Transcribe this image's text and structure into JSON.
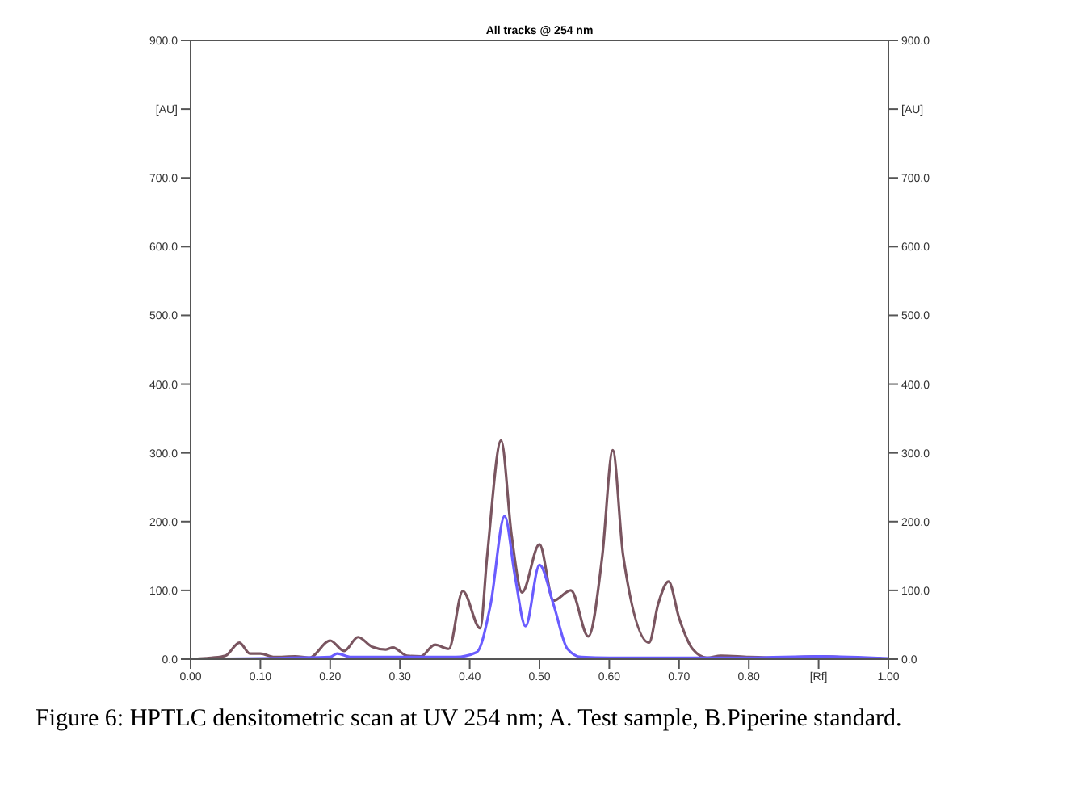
{
  "chart_data": {
    "type": "line",
    "title": "All tracks @ 254 nm",
    "annotations": [
      "Figure 6: HPTLC densitometric scan at UV 254 nm; A. Test sample, B.Piperine standard."
    ],
    "xlim": [
      0,
      1
    ],
    "xticks": [
      {
        "value": 0,
        "label": "0.00"
      },
      {
        "value": 0.1,
        "label": "0.10"
      },
      {
        "value": 0.2,
        "label": "0.20"
      },
      {
        "value": 0.3,
        "label": "0.30"
      },
      {
        "value": 0.4,
        "label": "0.40"
      },
      {
        "value": 0.5,
        "label": "0.50"
      },
      {
        "value": 0.6,
        "label": "0.60"
      },
      {
        "value": 0.7,
        "label": "0.70"
      },
      {
        "value": 0.8,
        "label": "0.80"
      },
      {
        "value": 0.9,
        "label": "[Rf]"
      },
      {
        "value": 1,
        "label": "1.00"
      }
    ],
    "ylim": [
      0,
      900
    ],
    "yticks": [
      {
        "value": 0,
        "label": "0.0"
      },
      {
        "value": 100,
        "label": "100.0"
      },
      {
        "value": 200,
        "label": "200.0"
      },
      {
        "value": 300,
        "label": "300.0"
      },
      {
        "value": 400,
        "label": "400.0"
      },
      {
        "value": 500,
        "label": "500.0"
      },
      {
        "value": 600,
        "label": "600.0"
      },
      {
        "value": 700,
        "label": "700.0"
      },
      {
        "value": 800,
        "label": "[AU]"
      },
      {
        "value": 900,
        "label": "900.0"
      }
    ],
    "y2lim": [
      0,
      900
    ],
    "y2ticks": [
      {
        "value": 0,
        "label": "0.0"
      },
      {
        "value": 100,
        "label": "100.0"
      },
      {
        "value": 200,
        "label": "200.0"
      },
      {
        "value": 300,
        "label": "300.0"
      },
      {
        "value": 400,
        "label": "400.0"
      },
      {
        "value": 500,
        "label": "500.0"
      },
      {
        "value": 600,
        "label": "600.0"
      },
      {
        "value": 700,
        "label": "700.0"
      },
      {
        "value": 800,
        "label": "[AU]"
      },
      {
        "value": 900,
        "label": "900.0"
      }
    ],
    "marker": "none",
    "line_style": "solid",
    "series": [
      {
        "color": "#7a5560",
        "x": [
          0,
          0.03,
          0.05,
          0.07,
          0.085,
          0.1,
          0.12,
          0.15,
          0.17,
          0.2,
          0.22,
          0.24,
          0.26,
          0.28,
          0.29,
          0.31,
          0.33,
          0.35,
          0.37,
          0.39,
          0.415,
          0.425,
          0.445,
          0.46,
          0.475,
          0.5,
          0.52,
          0.545,
          0.57,
          0.59,
          0.605,
          0.62,
          0.657,
          0.67,
          0.685,
          0.7,
          0.72,
          0.74,
          0.76,
          0.8,
          0.85,
          0.9,
          0.95,
          0.99
        ],
        "values": [
          0,
          2,
          5,
          24,
          8,
          8,
          3,
          4,
          2,
          27,
          12,
          32,
          18,
          14,
          17,
          5,
          4,
          21,
          15,
          99,
          45,
          150,
          318,
          180,
          97,
          167,
          85,
          100,
          33,
          150,
          304,
          150,
          24,
          80,
          113,
          60,
          14,
          2,
          5,
          3,
          2,
          4,
          2,
          1
        ]
      },
      {
        "color": "#6a5cff",
        "x": [
          0,
          0.2,
          0.21,
          0.23,
          0.38,
          0.41,
          0.43,
          0.45,
          0.465,
          0.48,
          0.5,
          0.52,
          0.54,
          0.56,
          0.6,
          0.7,
          0.8,
          0.9,
          1
        ],
        "values": [
          0,
          3,
          8,
          3,
          3,
          10,
          80,
          208,
          120,
          48,
          137,
          80,
          15,
          3,
          2,
          2,
          2,
          4,
          1
        ]
      }
    ]
  }
}
